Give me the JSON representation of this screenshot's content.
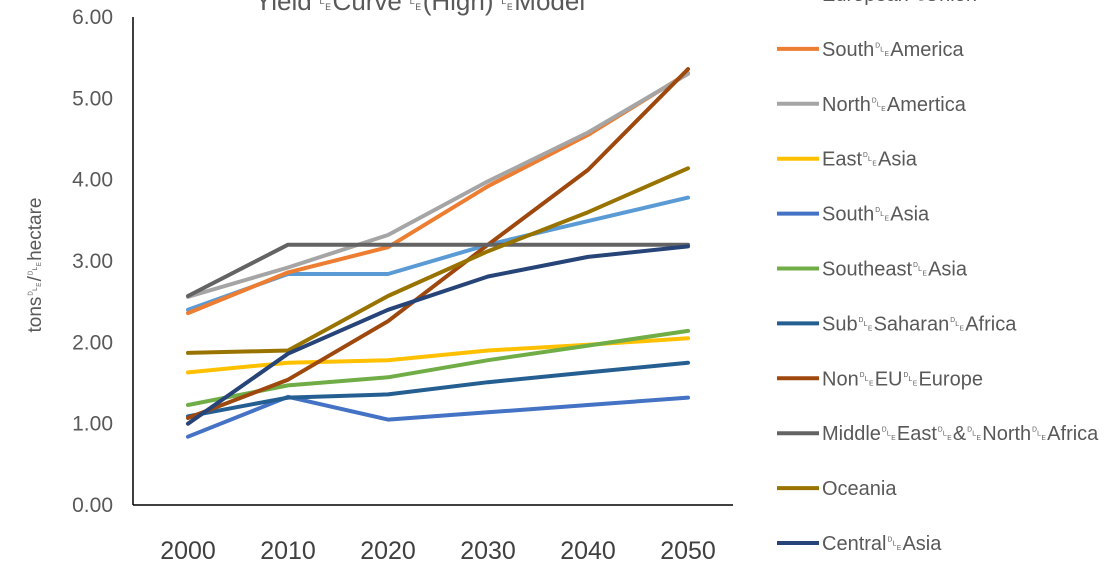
{
  "chart_data": {
    "type": "line",
    "title": "Yield␐Curve␐(High)␐Model",
    "xlabel": "",
    "ylabel": "tons␐/␐hectare",
    "ylim": [
      0,
      6
    ],
    "y_ticks": [
      "0.00",
      "1.00",
      "2.00",
      "3.00",
      "4.00",
      "5.00",
      "6.00"
    ],
    "x": [
      "2000",
      "2010",
      "2020",
      "2030",
      "2040",
      "2050"
    ],
    "grid": false,
    "legend_position": "right",
    "series": [
      {
        "name": "European␐Union",
        "color": "#5B9BD5",
        "values": [
          2.4,
          2.84,
          2.84,
          3.2,
          3.49,
          3.78
        ]
      },
      {
        "name": "South␐America",
        "color": "#ED7D31",
        "values": [
          2.36,
          2.86,
          3.17,
          3.92,
          4.55,
          5.31
        ]
      },
      {
        "name": "North␐Amertica",
        "color": "#A5A5A5",
        "values": [
          2.56,
          2.92,
          3.32,
          3.98,
          4.58,
          5.3
        ]
      },
      {
        "name": "East␐Asia",
        "color": "#FFC000",
        "values": [
          1.63,
          1.75,
          1.78,
          1.9,
          1.97,
          2.05
        ]
      },
      {
        "name": "South␐Asia",
        "color": "#4472C4",
        "values": [
          0.84,
          1.33,
          1.05,
          1.14,
          1.23,
          1.32
        ]
      },
      {
        "name": "Southeast␐Asia",
        "color": "#70AD47",
        "values": [
          1.23,
          1.47,
          1.57,
          1.78,
          1.96,
          2.14
        ]
      },
      {
        "name": "Sub␐Saharan␐Africa",
        "color": "#255E91",
        "values": [
          1.09,
          1.32,
          1.36,
          1.51,
          1.63,
          1.75
        ]
      },
      {
        "name": "Non␐EU␐Europe",
        "color": "#9E480E",
        "values": [
          1.07,
          1.54,
          2.26,
          3.2,
          4.12,
          5.36
        ]
      },
      {
        "name": "Middle␐East␐&␐North␐Africa",
        "color": "#636363",
        "values": [
          2.57,
          3.2,
          3.2,
          3.2,
          3.2,
          3.2
        ]
      },
      {
        "name": "Oceania",
        "color": "#997300",
        "values": [
          1.87,
          1.9,
          2.57,
          3.12,
          3.6,
          4.14
        ]
      },
      {
        "name": "Central␐Asia",
        "color": "#264478",
        "values": [
          1.0,
          1.86,
          2.4,
          2.81,
          3.05,
          3.18
        ]
      }
    ]
  }
}
